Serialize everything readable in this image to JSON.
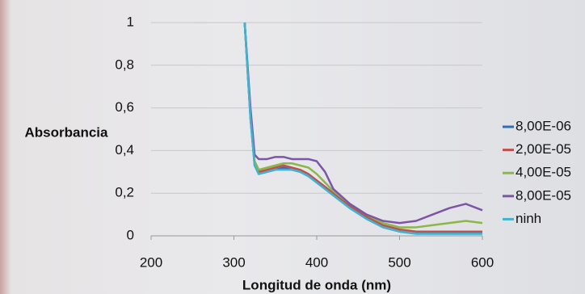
{
  "chart_data": {
    "type": "line",
    "x_label": "Longitud de onda (nm)",
    "y_label": "Absorbancia",
    "x": [
      313,
      320,
      325,
      330,
      340,
      350,
      360,
      370,
      380,
      390,
      400,
      410,
      420,
      440,
      460,
      480,
      500,
      520,
      540,
      560,
      580,
      600
    ],
    "series": [
      {
        "name": "8,00E-06",
        "color": "#2f6eb5",
        "values": [
          1,
          0.55,
          0.33,
          0.29,
          0.3,
          0.31,
          0.32,
          0.31,
          0.3,
          0.28,
          0.25,
          0.22,
          0.19,
          0.13,
          0.08,
          0.04,
          0.02,
          0.01,
          0.01,
          0.01,
          0.01,
          0.01
        ]
      },
      {
        "name": "2,00E-05",
        "color": "#c0504d",
        "values": [
          1,
          0.56,
          0.34,
          0.3,
          0.31,
          0.32,
          0.33,
          0.32,
          0.31,
          0.29,
          0.26,
          0.23,
          0.2,
          0.14,
          0.09,
          0.05,
          0.03,
          0.02,
          0.02,
          0.02,
          0.02,
          0.02
        ]
      },
      {
        "name": "4,00E-05",
        "color": "#8db648",
        "values": [
          1,
          0.57,
          0.35,
          0.31,
          0.32,
          0.33,
          0.34,
          0.34,
          0.33,
          0.32,
          0.29,
          0.25,
          0.21,
          0.15,
          0.1,
          0.06,
          0.04,
          0.04,
          0.05,
          0.06,
          0.07,
          0.06
        ]
      },
      {
        "name": "8,00E-05",
        "color": "#7d55a8",
        "values": [
          1,
          0.6,
          0.38,
          0.36,
          0.36,
          0.37,
          0.37,
          0.36,
          0.36,
          0.36,
          0.35,
          0.3,
          0.22,
          0.15,
          0.1,
          0.07,
          0.06,
          0.07,
          0.1,
          0.13,
          0.15,
          0.12
        ]
      },
      {
        "name": "ninh",
        "color": "#3fb4cf",
        "values": [
          1,
          0.55,
          0.33,
          0.29,
          0.3,
          0.31,
          0.31,
          0.31,
          0.3,
          0.28,
          0.25,
          0.22,
          0.19,
          0.13,
          0.08,
          0.04,
          0.02,
          0.01,
          0.01,
          0.01,
          0.01,
          0.01
        ]
      }
    ],
    "xlim": [
      200,
      600
    ],
    "xticks": [
      200,
      300,
      400,
      500,
      600
    ],
    "ylim": [
      0,
      1
    ],
    "yticks": [
      0,
      {
        "value": 0.2,
        "label": "0,2"
      },
      {
        "value": 0.4,
        "label": "0,4"
      },
      {
        "value": 0.6,
        "label": "0,6"
      },
      {
        "value": 0.8,
        "label": "0,8"
      },
      1
    ],
    "grid": true,
    "legend": "right"
  }
}
